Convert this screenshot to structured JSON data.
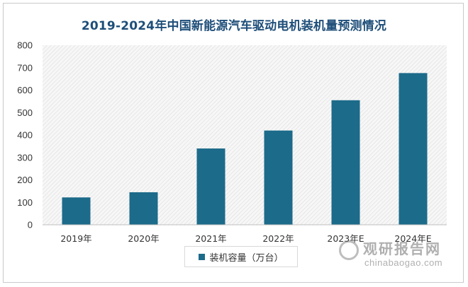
{
  "chart_data": {
    "type": "bar",
    "title": "2019-2024年中国新能源汽车驱动电机装机量预测情况",
    "categories": [
      "2019年",
      "2020年",
      "2021年",
      "2022年",
      "2023年E",
      "2024年E"
    ],
    "series": [
      {
        "name": "装机容量（万台）",
        "values": [
          122,
          145,
          340,
          420,
          555,
          676
        ]
      }
    ],
    "ylim": [
      0,
      800
    ],
    "yticks": [
      0,
      100,
      200,
      300,
      400,
      500,
      600,
      700,
      800
    ],
    "grid": false,
    "legend_position": "bottom",
    "bar_color": "#1c6b8a"
  },
  "watermark": {
    "text_cn": "观研报告网",
    "text_en": "chinabaogao.com"
  }
}
